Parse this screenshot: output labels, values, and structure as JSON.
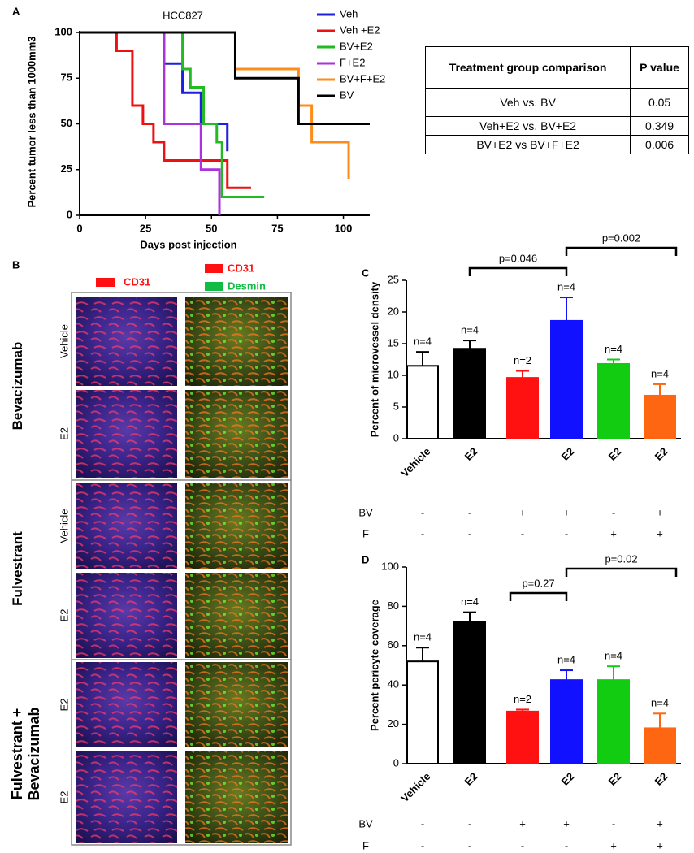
{
  "panel_labels": [
    "A",
    "B",
    "C",
    "D"
  ],
  "chart_data": [
    {
      "type": "step",
      "title": "HCC827",
      "xlabel": "Days post injection",
      "ylabel": "Percent tumor less than 1000mm3",
      "xlim": [
        0,
        110
      ],
      "ylim": [
        0,
        100
      ],
      "xticks": [
        0,
        25,
        50,
        75,
        100
      ],
      "yticks": [
        0,
        25,
        50,
        75,
        100
      ],
      "series": [
        {
          "name": "Veh",
          "color": "#1f1fe0",
          "x": [
            0,
            32,
            39,
            46,
            56
          ],
          "values": [
            100,
            83,
            67,
            50,
            35
          ]
        },
        {
          "name": "Veh +E2",
          "color": "#ee1111",
          "x": [
            0,
            14,
            20,
            24,
            28,
            32,
            56,
            65
          ],
          "values": [
            100,
            90,
            60,
            50,
            40,
            30,
            15,
            15
          ]
        },
        {
          "name": "BV+E2",
          "color": "#22bb22",
          "x": [
            0,
            39,
            42,
            47,
            52,
            54,
            70
          ],
          "values": [
            100,
            80,
            70,
            50,
            40,
            10,
            10
          ]
        },
        {
          "name": "F+E2",
          "color": "#aa33dd",
          "x": [
            0,
            32,
            46,
            53
          ],
          "values": [
            100,
            50,
            25,
            0
          ]
        },
        {
          "name": "BV+F+E2",
          "color": "#ff8c1a",
          "x": [
            0,
            59,
            83,
            88,
            102
          ],
          "values": [
            100,
            80,
            60,
            40,
            20
          ]
        },
        {
          "name": "BV",
          "color": "#000000",
          "x": [
            0,
            59,
            83,
            110
          ],
          "values": [
            100,
            75,
            50,
            50
          ]
        }
      ]
    },
    {
      "type": "bar",
      "ylabel": "Percent of microvessel density",
      "categories": [
        "Vehicle",
        "E2",
        null,
        "E2",
        "E2",
        "E2"
      ],
      "values": [
        11.5,
        14.2,
        9.6,
        18.6,
        11.8,
        6.8
      ],
      "errors": [
        2.2,
        1.3,
        1.1,
        3.7,
        0.7,
        1.8
      ],
      "n_labels": [
        "n=4",
        "n=4",
        "n=2",
        "n=4",
        "n=4",
        "n=4"
      ],
      "colors": [
        "#ffffff",
        "#000000",
        "#ff1111",
        "#1111ff",
        "#11cc11",
        "#ff6611"
      ],
      "ylim": [
        0,
        25
      ],
      "yticks": [
        0,
        5,
        10,
        15,
        20,
        25
      ],
      "comparisons": [
        "p=0.046",
        "p=0.002"
      ],
      "rows": [
        {
          "name": "BV",
          "signs": [
            "-",
            "-",
            "+",
            "+",
            "-",
            "+"
          ]
        },
        {
          "name": "F",
          "signs": [
            "-",
            "-",
            "-",
            "-",
            "+",
            "+"
          ]
        }
      ]
    },
    {
      "type": "bar",
      "ylabel": "Percent pericyte coverage",
      "categories": [
        "Vehicle",
        "E2",
        null,
        "E2",
        "E2",
        "E2"
      ],
      "values": [
        52,
        72,
        26.5,
        42.5,
        42.5,
        18
      ],
      "errors": [
        7,
        5,
        1,
        5,
        7,
        7.5
      ],
      "n_labels": [
        "n=4",
        "n=4",
        "n=2",
        "n=4",
        "n=4",
        "n=4"
      ],
      "colors": [
        "#ffffff",
        "#000000",
        "#ff1111",
        "#1111ff",
        "#11cc11",
        "#ff6611"
      ],
      "ylim": [
        0,
        100
      ],
      "yticks": [
        0,
        20,
        40,
        60,
        80,
        100
      ],
      "comparisons": [
        "p=0.27",
        "p=0.02"
      ],
      "rows": [
        {
          "name": "BV",
          "signs": [
            "-",
            "-",
            "+",
            "+",
            "-",
            "+"
          ]
        },
        {
          "name": "F",
          "signs": [
            "-",
            "-",
            "-",
            "-",
            "+",
            "+"
          ]
        }
      ]
    }
  ],
  "table": {
    "header": [
      "Treatment group comparison",
      "P value"
    ],
    "rows": [
      [
        "Veh vs. BV",
        "0.05"
      ],
      [
        "Veh+E2 vs. BV+E2",
        "0.349"
      ],
      [
        "BV+E2 vs BV+F+E2",
        "0.006"
      ]
    ]
  },
  "panel_b": {
    "stain_labels": [
      "CD31",
      "CD31",
      "Desmin"
    ],
    "groups": [
      {
        "name": "Bevacizumab",
        "rows": [
          "Vehicle",
          "E2"
        ]
      },
      {
        "name": "Fulvestrant",
        "rows": [
          "Vehicle",
          "E2"
        ]
      },
      {
        "name": "Fulvestrant + Bevacizumab",
        "rows": [
          "E2",
          "E2"
        ]
      }
    ]
  }
}
